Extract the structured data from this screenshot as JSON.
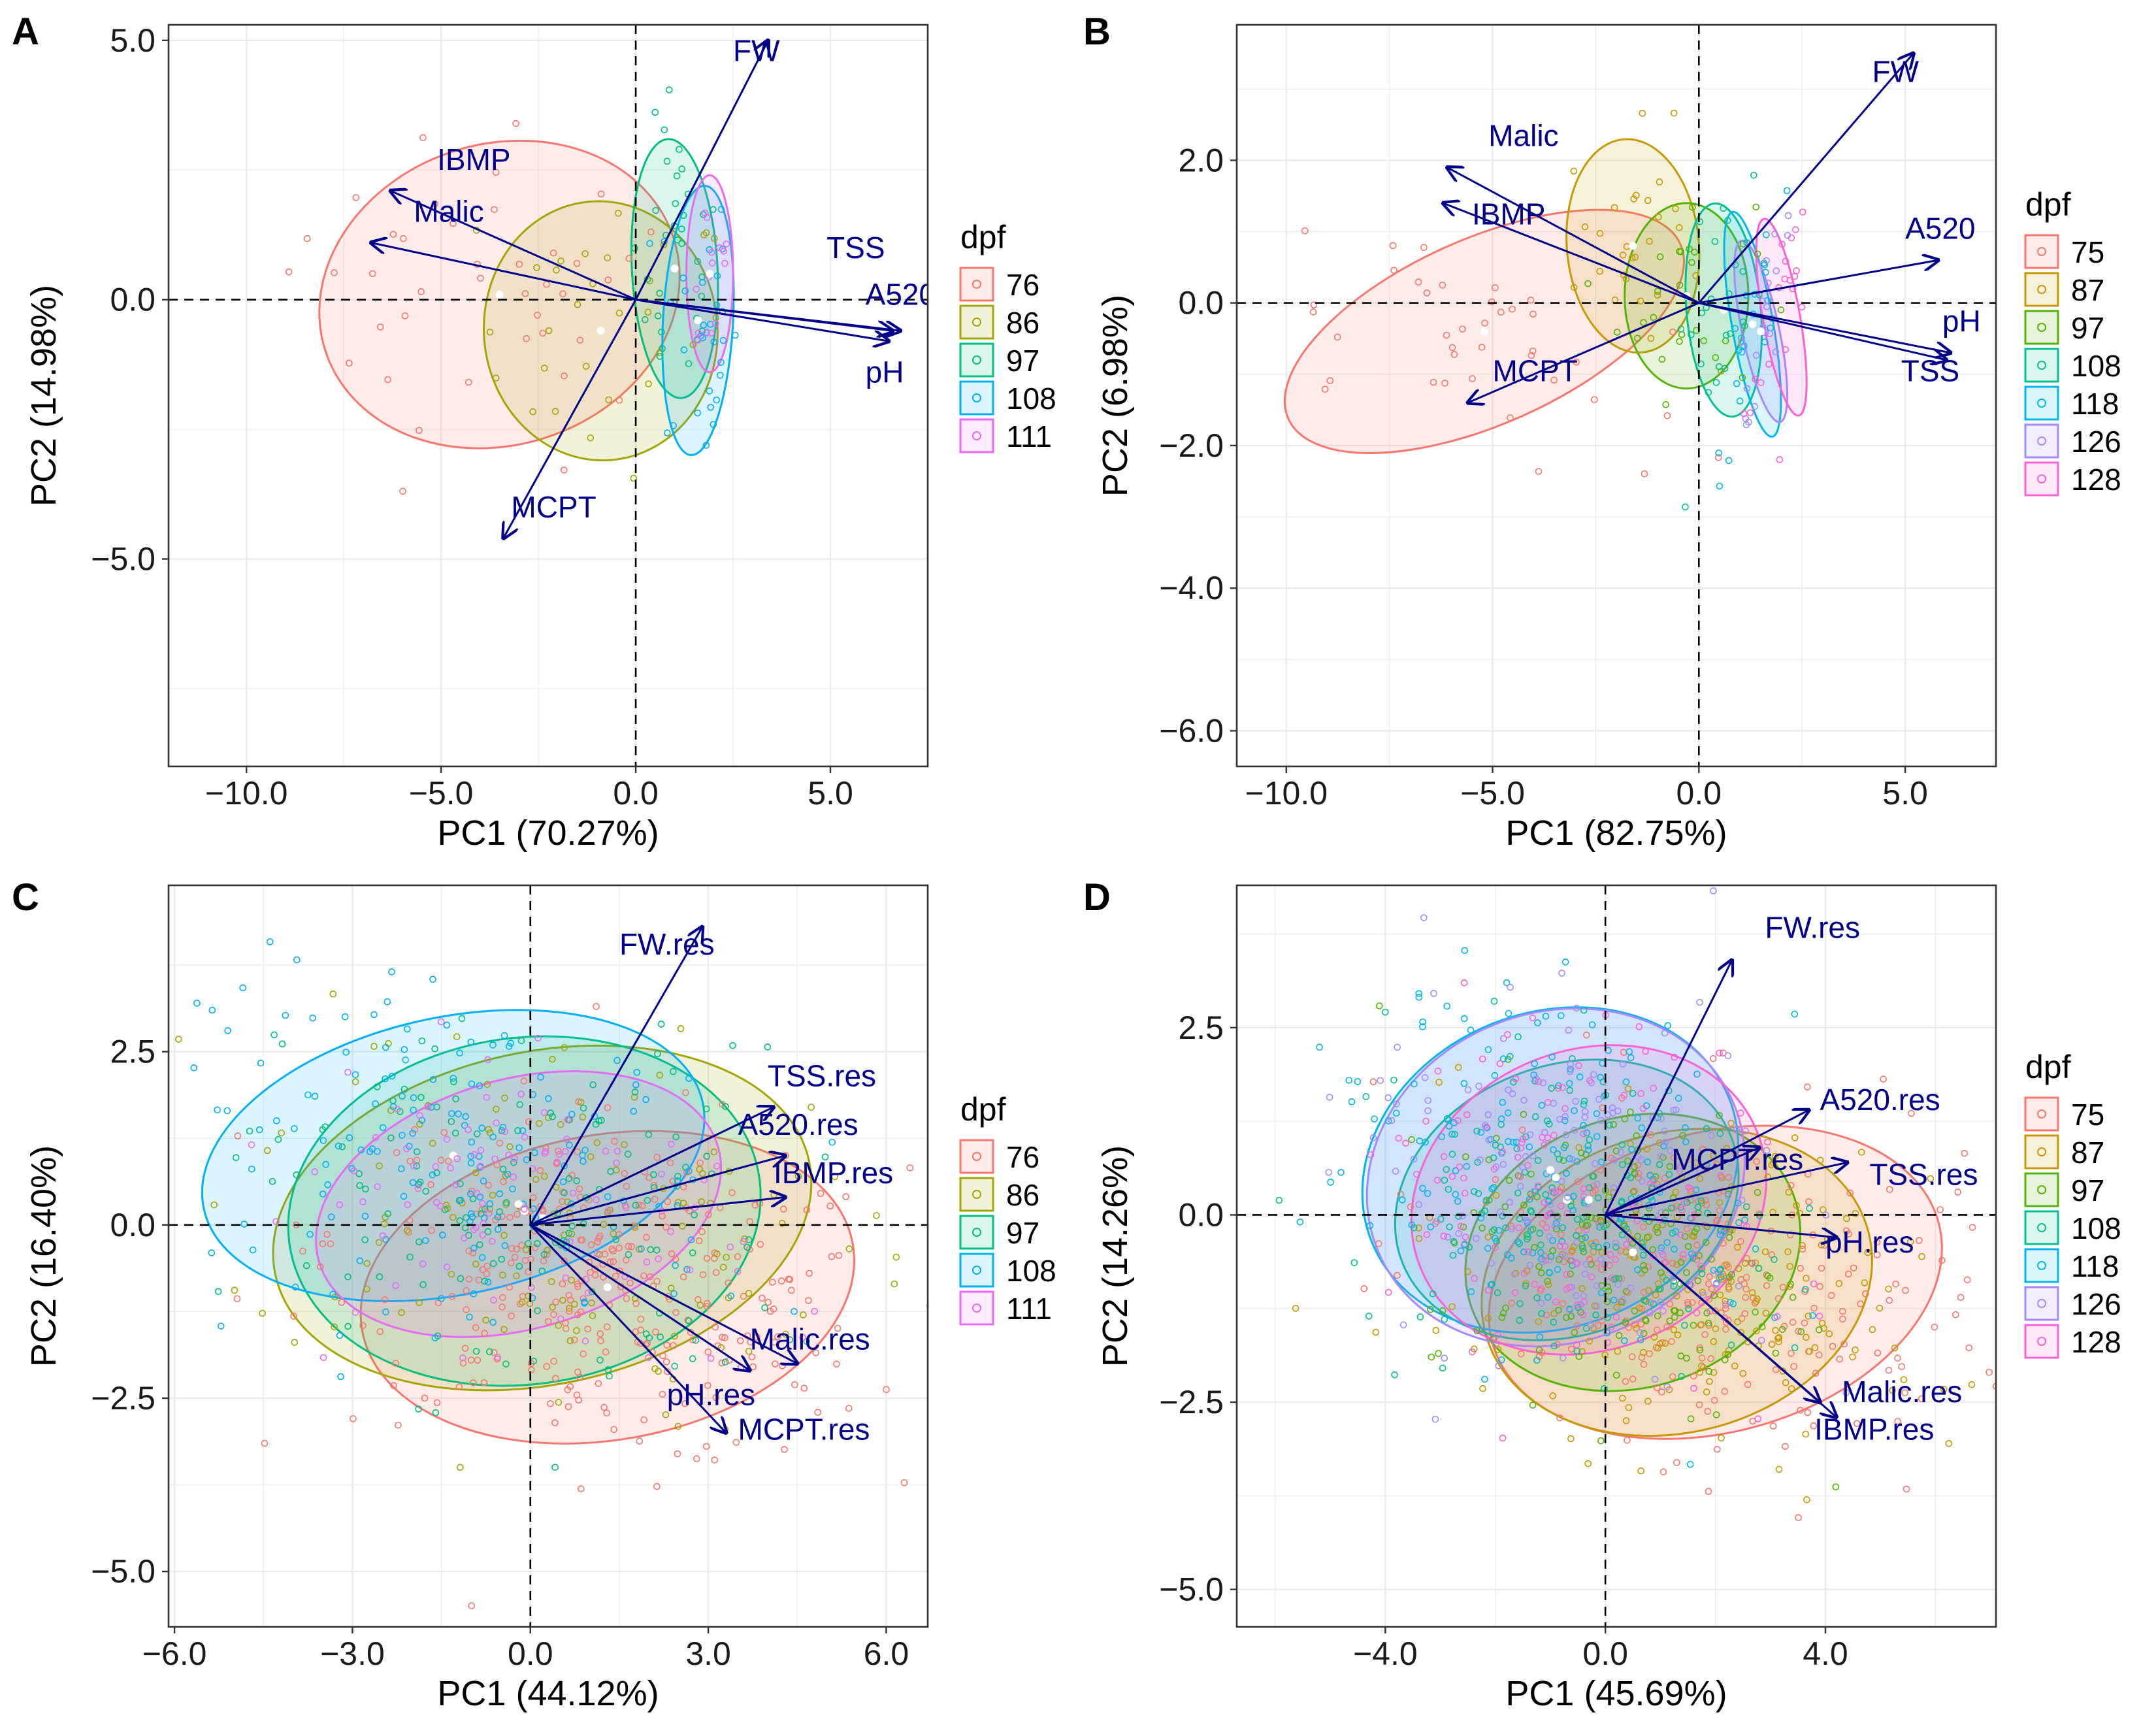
{
  "colors": {
    "arrow": "#00008B",
    "group_palette_5": [
      "#F8766D",
      "#A3A500",
      "#00BF7D",
      "#00B0F6",
      "#E76BF3"
    ],
    "group_palette_7": [
      "#F8766D",
      "#C49A00",
      "#53B400",
      "#00C094",
      "#00B6EB",
      "#A58AFF",
      "#FB61D7"
    ]
  },
  "chart_data": [
    {
      "panel": "A",
      "type": "scatter",
      "subtype": "pca-biplot",
      "xlabel": "PC1 (70.27%)",
      "ylabel": "PC2 (14.98%)",
      "xlim": [
        -12.0,
        7.5
      ],
      "ylim": [
        -9.0,
        5.3
      ],
      "xticks": [
        -10.0,
        -5.0,
        0.0,
        5.0
      ],
      "xtick_labels": [
        "−10.0",
        "−5.0",
        "0.0",
        "5.0"
      ],
      "yticks": [
        -5.0,
        0.0,
        5.0
      ],
      "ytick_labels": [
        "−5.0",
        "0.0",
        "5.0"
      ],
      "legend": {
        "title": "dpf",
        "entries": [
          "76",
          "86",
          "97",
          "108",
          "111"
        ]
      },
      "groups": [
        {
          "name": "76",
          "center": [
            -3.5,
            0.1
          ],
          "rx": 4.7,
          "ry": 2.9,
          "angle": 18,
          "n": 40
        },
        {
          "name": "86",
          "center": [
            -0.9,
            -0.6
          ],
          "rx": 3.0,
          "ry": 2.5,
          "angle": 5,
          "n": 30
        },
        {
          "name": "97",
          "center": [
            1.0,
            0.6
          ],
          "rx": 1.1,
          "ry": 2.5,
          "angle": 3,
          "n": 35
        },
        {
          "name": "108",
          "center": [
            1.6,
            -0.4
          ],
          "rx": 0.9,
          "ry": 2.6,
          "angle": -3,
          "n": 30
        },
        {
          "name": "111",
          "center": [
            1.9,
            0.5
          ],
          "rx": 0.6,
          "ry": 1.9,
          "angle": 0,
          "n": 15
        }
      ],
      "loadings": [
        {
          "label": "FW",
          "x": 3.4,
          "y": 5.0,
          "lx": 2.5,
          "ly": 4.6
        },
        {
          "label": "IBMP",
          "x": -6.3,
          "y": 2.1,
          "lx": -5.1,
          "ly": 2.5
        },
        {
          "label": "Malic",
          "x": -6.8,
          "y": 1.1,
          "lx": -5.7,
          "ly": 1.5
        },
        {
          "label": "TSS",
          "x": 6.6,
          "y": -0.6,
          "lx": 4.9,
          "ly": 0.8
        },
        {
          "label": "A520",
          "x": 6.8,
          "y": -0.6,
          "lx": 5.9,
          "ly": -0.1
        },
        {
          "label": "pH",
          "x": 6.5,
          "y": -0.8,
          "lx": 5.9,
          "ly": -1.6
        },
        {
          "label": "MCPT",
          "x": -3.4,
          "y": -4.6,
          "lx": -3.2,
          "ly": -4.2
        }
      ]
    },
    {
      "panel": "B",
      "type": "scatter",
      "subtype": "pca-biplot",
      "xlabel": "PC1 (82.75%)",
      "ylabel": "PC2 (6.98%)",
      "xlim": [
        -11.2,
        7.2
      ],
      "ylim": [
        -6.5,
        3.9
      ],
      "xticks": [
        -10.0,
        -5.0,
        0.0,
        5.0
      ],
      "xtick_labels": [
        "−10.0",
        "−5.0",
        "0.0",
        "5.0"
      ],
      "yticks": [
        -6.0,
        -4.0,
        -2.0,
        0.0,
        2.0
      ],
      "ytick_labels": [
        "−6.0",
        "−4.0",
        "−2.0",
        "0.0",
        "2.0"
      ],
      "legend": {
        "title": "dpf",
        "entries": [
          "75",
          "87",
          "97",
          "108",
          "118",
          "126",
          "128"
        ]
      },
      "groups": [
        {
          "name": "75",
          "center": [
            -5.2,
            -0.4
          ],
          "rx": 5.2,
          "ry": 1.3,
          "angle": 24,
          "n": 40
        },
        {
          "name": "87",
          "center": [
            -1.6,
            0.8
          ],
          "rx": 1.6,
          "ry": 1.5,
          "angle": 5,
          "n": 28
        },
        {
          "name": "97",
          "center": [
            -0.3,
            0.1
          ],
          "rx": 1.5,
          "ry": 1.3,
          "angle": 0,
          "n": 28
        },
        {
          "name": "108",
          "center": [
            0.6,
            -0.1
          ],
          "rx": 0.9,
          "ry": 1.5,
          "angle": 5,
          "n": 25
        },
        {
          "name": "118",
          "center": [
            1.3,
            -0.3
          ],
          "rx": 0.5,
          "ry": 1.6,
          "angle": 10,
          "n": 22
        },
        {
          "name": "126",
          "center": [
            1.5,
            -0.4
          ],
          "rx": 0.45,
          "ry": 1.3,
          "angle": 12,
          "n": 20
        },
        {
          "name": "128",
          "center": [
            2.0,
            -0.2
          ],
          "rx": 0.45,
          "ry": 1.4,
          "angle": 10,
          "n": 20
        }
      ],
      "loadings": [
        {
          "label": "FW",
          "x": 5.2,
          "y": 3.5,
          "lx": 4.2,
          "ly": 3.1
        },
        {
          "label": "Malic",
          "x": -6.1,
          "y": 1.9,
          "lx": -5.1,
          "ly": 2.2
        },
        {
          "label": "IBMP",
          "x": -6.2,
          "y": 1.4,
          "lx": -5.5,
          "ly": 1.1
        },
        {
          "label": "A520",
          "x": 5.8,
          "y": 0.6,
          "lx": 5.0,
          "ly": 0.9
        },
        {
          "label": "pH",
          "x": 6.1,
          "y": -0.7,
          "lx": 5.9,
          "ly": -0.4
        },
        {
          "label": "TSS",
          "x": 6.0,
          "y": -0.8,
          "lx": 4.9,
          "ly": -1.1
        },
        {
          "label": "MCPT",
          "x": -5.6,
          "y": -1.4,
          "lx": -5.0,
          "ly": -1.1
        }
      ]
    },
    {
      "panel": "C",
      "type": "scatter",
      "subtype": "pca-biplot",
      "xlabel": "PC1 (44.12%)",
      "ylabel": "PC2 (16.40%)",
      "xlim": [
        -6.1,
        6.7
      ],
      "ylim": [
        -5.8,
        4.9
      ],
      "xticks": [
        -6.0,
        -3.0,
        0.0,
        3.0,
        6.0
      ],
      "xtick_labels": [
        "−6.0",
        "−3.0",
        "0.0",
        "3.0",
        "6.0"
      ],
      "yticks": [
        -5.0,
        -2.5,
        0.0,
        2.5
      ],
      "ytick_labels": [
        "−5.0",
        "−2.5",
        "0.0",
        "2.5"
      ],
      "legend": {
        "title": "dpf",
        "entries": [
          "76",
          "86",
          "97",
          "108",
          "111"
        ]
      },
      "groups": [
        {
          "name": "76",
          "center": [
            1.3,
            -0.9
          ],
          "rx": 4.2,
          "ry": 2.2,
          "angle": 10,
          "n": 320
        },
        {
          "name": "86",
          "center": [
            0.2,
            0.1
          ],
          "rx": 4.6,
          "ry": 2.4,
          "angle": 12,
          "n": 140
        },
        {
          "name": "97",
          "center": [
            -0.1,
            0.2
          ],
          "rx": 4.0,
          "ry": 2.5,
          "angle": 8,
          "n": 150
        },
        {
          "name": "108",
          "center": [
            -1.3,
            1.0
          ],
          "rx": 4.3,
          "ry": 2.0,
          "angle": 12,
          "n": 170
        },
        {
          "name": "111",
          "center": [
            -0.2,
            0.3
          ],
          "rx": 3.5,
          "ry": 1.8,
          "angle": 16,
          "n": 100
        }
      ],
      "loadings": [
        {
          "label": "FW.res",
          "x": 2.9,
          "y": 4.3,
          "lx": 1.5,
          "ly": 3.9
        },
        {
          "label": "TSS.res",
          "x": 4.1,
          "y": 1.7,
          "lx": 4.0,
          "ly": 2.0
        },
        {
          "label": "A520.res",
          "x": 4.3,
          "y": 1.0,
          "lx": 3.5,
          "ly": 1.3
        },
        {
          "label": "IBMP.res",
          "x": 4.3,
          "y": 0.4,
          "lx": 4.1,
          "ly": 0.6
        },
        {
          "label": "Malic.res",
          "x": 4.5,
          "y": -2.0,
          "lx": 3.7,
          "ly": -1.8
        },
        {
          "label": "pH.res",
          "x": 3.7,
          "y": -2.1,
          "lx": 2.3,
          "ly": -2.6
        },
        {
          "label": "MCPT.res",
          "x": 3.3,
          "y": -3.0,
          "lx": 3.5,
          "ly": -3.1
        }
      ]
    },
    {
      "panel": "D",
      "type": "scatter",
      "subtype": "pca-biplot",
      "xlabel": "PC1 (45.69%)",
      "ylabel": "PC2 (14.26%)",
      "xlim": [
        -6.7,
        7.1
      ],
      "ylim": [
        -5.5,
        4.4
      ],
      "xticks": [
        -4.0,
        0.0,
        4.0
      ],
      "xtick_labels": [
        "−4.0",
        "0.0",
        "4.0"
      ],
      "yticks": [
        -5.0,
        -2.5,
        0.0,
        2.5
      ],
      "ytick_labels": [
        "−5.0",
        "−2.5",
        "0.0",
        "2.5"
      ],
      "legend": {
        "title": "dpf",
        "entries": [
          "75",
          "87",
          "97",
          "108",
          "118",
          "126",
          "128"
        ]
      },
      "groups": [
        {
          "name": "75",
          "center": [
            2.0,
            -0.9
          ],
          "rx": 4.2,
          "ry": 2.0,
          "angle": 15,
          "n": 250
        },
        {
          "name": "87",
          "center": [
            1.3,
            -0.9
          ],
          "rx": 3.6,
          "ry": 2.0,
          "angle": 15,
          "n": 200
        },
        {
          "name": "97",
          "center": [
            0.5,
            -0.5
          ],
          "rx": 3.1,
          "ry": 1.8,
          "angle": 18,
          "n": 170
        },
        {
          "name": "108",
          "center": [
            -0.7,
            0.2
          ],
          "rx": 3.2,
          "ry": 1.8,
          "angle": 20,
          "n": 170
        },
        {
          "name": "118",
          "center": [
            -1.0,
            0.6
          ],
          "rx": 3.5,
          "ry": 2.1,
          "angle": 22,
          "n": 180
        },
        {
          "name": "126",
          "center": [
            -0.9,
            0.5
          ],
          "rx": 3.5,
          "ry": 2.2,
          "angle": 22,
          "n": 160
        },
        {
          "name": "128",
          "center": [
            -0.3,
            0.2
          ],
          "rx": 3.3,
          "ry": 2.0,
          "angle": 22,
          "n": 140
        }
      ],
      "loadings": [
        {
          "label": "FW.res",
          "x": 2.3,
          "y": 3.4,
          "lx": 2.9,
          "ly": 3.7
        },
        {
          "label": "A520.res",
          "x": 3.7,
          "y": 1.4,
          "lx": 3.9,
          "ly": 1.4
        },
        {
          "label": "MCPT.res",
          "x": 2.8,
          "y": 0.9,
          "lx": 1.2,
          "ly": 0.6
        },
        {
          "label": "TSS.res",
          "x": 4.4,
          "y": 0.7,
          "lx": 4.8,
          "ly": 0.4
        },
        {
          "label": "pH.res",
          "x": 4.2,
          "y": -0.3,
          "lx": 4.0,
          "ly": -0.5
        },
        {
          "label": "Malic.res",
          "x": 4.2,
          "y": -2.7,
          "lx": 4.3,
          "ly": -2.5
        },
        {
          "label": "IBMP.res",
          "x": 3.9,
          "y": -2.5,
          "lx": 3.8,
          "ly": -3.0
        }
      ]
    }
  ]
}
